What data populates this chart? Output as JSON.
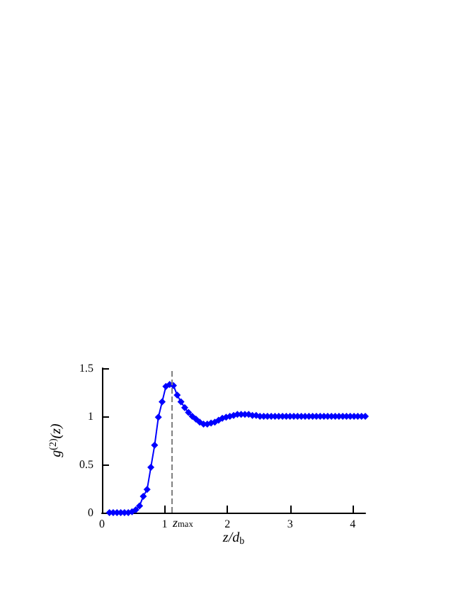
{
  "chart_data": {
    "type": "line",
    "xlabel": "z/d$_{b}$",
    "ylabel": "g$^{(2)}$(z)",
    "x": [
      0.12,
      0.18,
      0.24,
      0.3,
      0.36,
      0.42,
      0.48,
      0.54,
      0.6,
      0.66,
      0.72,
      0.78,
      0.84,
      0.9,
      0.96,
      1.02,
      1.08,
      1.14,
      1.2,
      1.26,
      1.32,
      1.38,
      1.44,
      1.5,
      1.56,
      1.62,
      1.68,
      1.74,
      1.8,
      1.86,
      1.92,
      1.98,
      2.04,
      2.1,
      2.16,
      2.22,
      2.28,
      2.34,
      2.4,
      2.46,
      2.52,
      2.58,
      2.64,
      2.7,
      2.76,
      2.82,
      2.88,
      2.94,
      3.0,
      3.06,
      3.12,
      3.18,
      3.24,
      3.3,
      3.36,
      3.42,
      3.48,
      3.54,
      3.6,
      3.66,
      3.72,
      3.78,
      3.84,
      3.9,
      3.96,
      4.02,
      4.08,
      4.14,
      4.2
    ],
    "series": [
      {
        "color": "#0000ff",
        "values": [
          0,
          0,
          0,
          0,
          0,
          0,
          0.01,
          0.03,
          0.07,
          0.17,
          0.24,
          0.47,
          0.7,
          0.99,
          1.15,
          1.31,
          1.33,
          1.32,
          1.22,
          1.15,
          1.09,
          1.04,
          1,
          0.97,
          0.94,
          0.92,
          0.92,
          0.93,
          0.94,
          0.96,
          0.98,
          0.99,
          1,
          1.01,
          1.02,
          1.02,
          1.02,
          1.02,
          1.01,
          1.01,
          1,
          1,
          1,
          1,
          1,
          1,
          1,
          1,
          1,
          1,
          1,
          1,
          1,
          1,
          1,
          1,
          1,
          1,
          1,
          1,
          1,
          1,
          1,
          1,
          1,
          1,
          1,
          1,
          1
        ]
      }
    ],
    "xlim": [
      0,
      4.2
    ],
    "xticks": [
      0,
      1,
      2,
      3,
      4
    ],
    "ylim": [
      0,
      1.5
    ],
    "yticks": [
      0,
      0.5,
      1,
      1.5
    ],
    "ref_lines": [
      {
        "axis": "x",
        "value": 1.11,
        "label": "z$_{max}$",
        "line_style": "dashed",
        "color": "#808080"
      }
    ],
    "marker": "diamond",
    "line_style": "solid"
  }
}
